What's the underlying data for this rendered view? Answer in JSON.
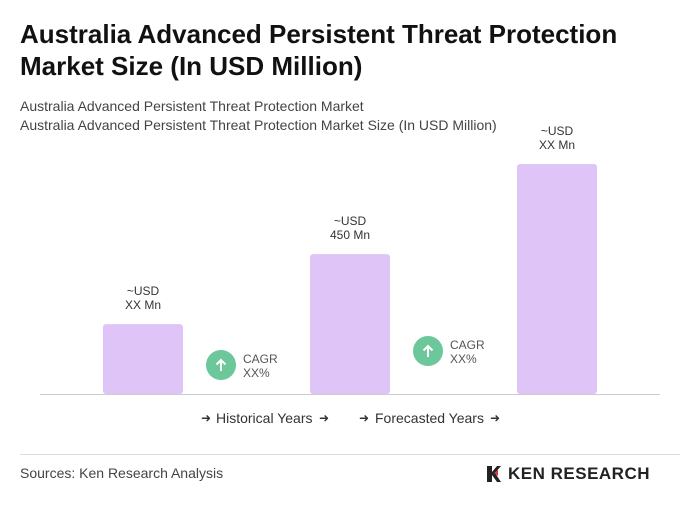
{
  "chart_data": {
    "type": "bar",
    "title": "Australia Advanced Persistent Threat Protection Market Size (In USD Million)",
    "subtitle": [
      "Australia Advanced Persistent Threat Protection Market",
      "Australia Advanced Persistent Threat Protection Market Size (In USD Million)"
    ],
    "values": [
      225,
      450,
      740
    ],
    "value_labels": [
      "~USD\nXX Mn",
      "~USD\n450 Mn",
      "~USD\nXX Mn"
    ],
    "color": "#dfc4f7",
    "annotations": [
      "CAGR\nXX%",
      "CAGR\nXX%"
    ],
    "legend": [
      "Historical Years",
      "Forecasted Years"
    ],
    "source": "Sources: Ken Research Analysis",
    "logo": "KEN RESEARCH"
  }
}
